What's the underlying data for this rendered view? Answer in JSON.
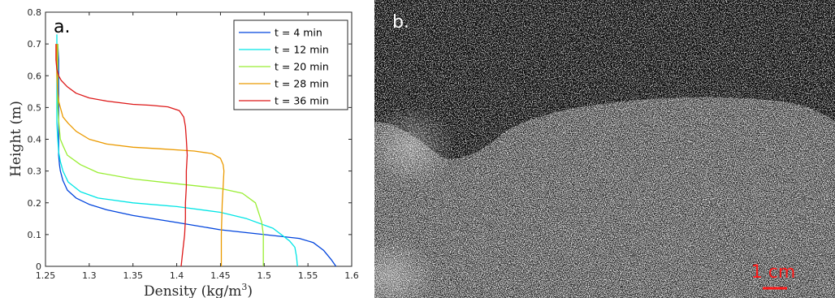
{
  "panels": {
    "a_label": "a.",
    "b_label": "b."
  },
  "chart_data": {
    "type": "line",
    "xlabel": "Density (kg/m",
    "xlabel_sup": "3",
    "xlabel_close": ")",
    "ylabel": "Height (m)",
    "xlim": [
      1.25,
      1.6
    ],
    "ylim": [
      0,
      0.8
    ],
    "xticks": [
      1.25,
      1.3,
      1.35,
      1.4,
      1.45,
      1.5,
      1.55,
      1.6
    ],
    "xtick_labels": [
      "1.25",
      "1.3",
      "1.35",
      "1.4",
      "1.45",
      "1.5",
      "1.55",
      "1.6"
    ],
    "yticks": [
      0,
      0.1,
      0.2,
      0.3,
      0.4,
      0.5,
      0.6,
      0.7,
      0.8
    ],
    "ytick_labels": [
      "0",
      "0.1",
      "0.2",
      "0.3",
      "0.4",
      "0.5",
      "0.6",
      "0.7",
      "0.8"
    ],
    "grid": false,
    "legend_position": "top-right",
    "series": [
      {
        "name": "t = 4 min",
        "color": "#0044dd",
        "points": [
          [
            1.582,
            0
          ],
          [
            1.577,
            0.02
          ],
          [
            1.568,
            0.05
          ],
          [
            1.556,
            0.075
          ],
          [
            1.54,
            0.088
          ],
          [
            1.5,
            0.1
          ],
          [
            1.45,
            0.115
          ],
          [
            1.4,
            0.138
          ],
          [
            1.35,
            0.16
          ],
          [
            1.32,
            0.178
          ],
          [
            1.3,
            0.195
          ],
          [
            1.285,
            0.215
          ],
          [
            1.275,
            0.24
          ],
          [
            1.27,
            0.27
          ],
          [
            1.267,
            0.3
          ],
          [
            1.266,
            0.32
          ],
          [
            1.265,
            0.35
          ],
          [
            1.265,
            0.4
          ],
          [
            1.265,
            0.45
          ],
          [
            1.265,
            0.5
          ],
          [
            1.265,
            0.55
          ],
          [
            1.265,
            0.6
          ],
          [
            1.265,
            0.65
          ],
          [
            1.264,
            0.7
          ]
        ]
      },
      {
        "name": "t = 12 min",
        "color": "#00e5e5",
        "points": [
          [
            1.538,
            0
          ],
          [
            1.537,
            0.03
          ],
          [
            1.535,
            0.06
          ],
          [
            1.529,
            0.08
          ],
          [
            1.51,
            0.12
          ],
          [
            1.48,
            0.15
          ],
          [
            1.45,
            0.17
          ],
          [
            1.4,
            0.188
          ],
          [
            1.35,
            0.2
          ],
          [
            1.31,
            0.215
          ],
          [
            1.29,
            0.235
          ],
          [
            1.276,
            0.265
          ],
          [
            1.27,
            0.3
          ],
          [
            1.267,
            0.33
          ],
          [
            1.265,
            0.36
          ],
          [
            1.264,
            0.4
          ],
          [
            1.263,
            0.45
          ],
          [
            1.263,
            0.5
          ],
          [
            1.263,
            0.55
          ],
          [
            1.263,
            0.6
          ],
          [
            1.263,
            0.65
          ],
          [
            1.263,
            0.7
          ],
          [
            1.263,
            0.73
          ]
        ]
      },
      {
        "name": "t = 20 min",
        "color": "#99ee33",
        "points": [
          [
            1.499,
            0
          ],
          [
            1.499,
            0.05
          ],
          [
            1.499,
            0.1
          ],
          [
            1.497,
            0.14
          ],
          [
            1.49,
            0.2
          ],
          [
            1.475,
            0.23
          ],
          [
            1.45,
            0.245
          ],
          [
            1.4,
            0.26
          ],
          [
            1.35,
            0.275
          ],
          [
            1.31,
            0.295
          ],
          [
            1.29,
            0.32
          ],
          [
            1.275,
            0.35
          ],
          [
            1.27,
            0.38
          ],
          [
            1.267,
            0.4
          ],
          [
            1.266,
            0.43
          ],
          [
            1.265,
            0.46
          ],
          [
            1.264,
            0.5
          ],
          [
            1.264,
            0.55
          ],
          [
            1.264,
            0.6
          ],
          [
            1.264,
            0.65
          ],
          [
            1.264,
            0.7
          ]
        ]
      },
      {
        "name": "t = 28 min",
        "color": "#eb9a00",
        "points": [
          [
            1.451,
            0
          ],
          [
            1.451,
            0.1
          ],
          [
            1.452,
            0.2
          ],
          [
            1.453,
            0.25
          ],
          [
            1.454,
            0.3
          ],
          [
            1.453,
            0.32
          ],
          [
            1.45,
            0.34
          ],
          [
            1.44,
            0.355
          ],
          [
            1.42,
            0.363
          ],
          [
            1.38,
            0.37
          ],
          [
            1.35,
            0.375
          ],
          [
            1.32,
            0.385
          ],
          [
            1.3,
            0.4
          ],
          [
            1.285,
            0.425
          ],
          [
            1.276,
            0.45
          ],
          [
            1.27,
            0.47
          ],
          [
            1.267,
            0.5
          ],
          [
            1.265,
            0.52
          ],
          [
            1.264,
            0.55
          ],
          [
            1.263,
            0.6
          ],
          [
            1.263,
            0.65
          ],
          [
            1.263,
            0.7
          ]
        ]
      },
      {
        "name": "t = 36 min",
        "color": "#dd1818",
        "points": [
          [
            1.405,
            0
          ],
          [
            1.407,
            0.05
          ],
          [
            1.409,
            0.1
          ],
          [
            1.41,
            0.15
          ],
          [
            1.41,
            0.2
          ],
          [
            1.411,
            0.25
          ],
          [
            1.411,
            0.3
          ],
          [
            1.412,
            0.35
          ],
          [
            1.411,
            0.4
          ],
          [
            1.41,
            0.44
          ],
          [
            1.408,
            0.47
          ],
          [
            1.403,
            0.49
          ],
          [
            1.39,
            0.502
          ],
          [
            1.37,
            0.507
          ],
          [
            1.35,
            0.51
          ],
          [
            1.32,
            0.52
          ],
          [
            1.3,
            0.53
          ],
          [
            1.285,
            0.545
          ],
          [
            1.275,
            0.565
          ],
          [
            1.268,
            0.585
          ],
          [
            1.265,
            0.6
          ],
          [
            1.263,
            0.62
          ],
          [
            1.262,
            0.65
          ],
          [
            1.262,
            0.68
          ],
          [
            1.262,
            0.7
          ]
        ]
      }
    ]
  },
  "photo": {
    "scale_bar_label": "1 cm",
    "scale_bar_color": "#ff1a1a",
    "background": "#0a0a0a"
  }
}
